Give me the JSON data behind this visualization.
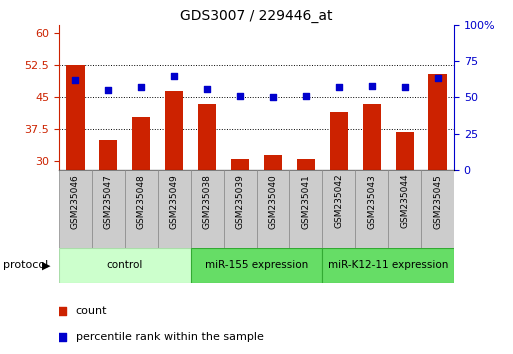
{
  "title": "GDS3007 / 229446_at",
  "samples": [
    "GSM235046",
    "GSM235047",
    "GSM235048",
    "GSM235049",
    "GSM235038",
    "GSM235039",
    "GSM235040",
    "GSM235041",
    "GSM235042",
    "GSM235043",
    "GSM235044",
    "GSM235045"
  ],
  "count_values": [
    52.5,
    35.0,
    40.5,
    46.5,
    43.5,
    30.5,
    31.5,
    30.5,
    41.5,
    43.5,
    37.0,
    50.5
  ],
  "percentile_values": [
    62,
    55,
    57,
    65,
    56,
    51,
    50,
    51,
    57,
    58,
    57,
    63
  ],
  "bar_color": "#cc2200",
  "dot_color": "#0000cc",
  "left_ylim": [
    28,
    62
  ],
  "left_yticks": [
    30,
    37.5,
    45,
    52.5,
    60
  ],
  "left_yticklabels": [
    "30",
    "37.5",
    "45",
    "52.5",
    "60"
  ],
  "right_ylim": [
    0,
    100
  ],
  "right_yticks": [
    0,
    25,
    50,
    75,
    100
  ],
  "right_yticklabels": [
    "0",
    "25",
    "50",
    "75",
    "100%"
  ],
  "bar_bottom": 28,
  "grid_values": [
    37.5,
    45.0,
    52.5
  ],
  "protocol_label": "protocol",
  "legend_count": "count",
  "legend_percentile": "percentile rank within the sample",
  "left_tick_color": "#cc2200",
  "right_tick_color": "#0000cc",
  "group_configs": [
    {
      "start": 0,
      "end": 3,
      "label": "control",
      "facecolor": "#ccffcc",
      "edgecolor": "#aaddaa"
    },
    {
      "start": 4,
      "end": 7,
      "label": "miR-155 expression",
      "facecolor": "#66dd66",
      "edgecolor": "#33aa33"
    },
    {
      "start": 8,
      "end": 11,
      "label": "miR-K12-11 expression",
      "facecolor": "#66dd66",
      "edgecolor": "#33aa33"
    }
  ],
  "sample_box_color": "#cccccc",
  "sample_box_edge": "#888888"
}
